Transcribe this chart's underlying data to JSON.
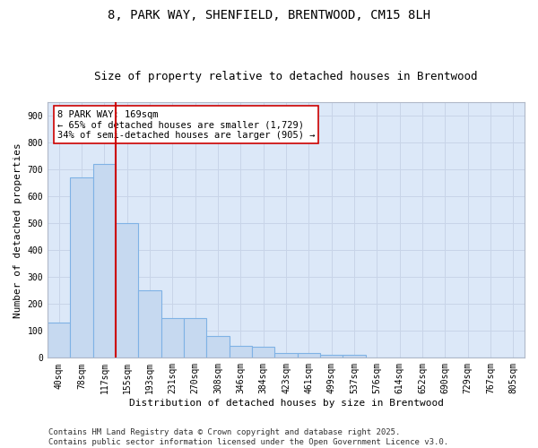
{
  "title_line1": "8, PARK WAY, SHENFIELD, BRENTWOOD, CM15 8LH",
  "title_line2": "Size of property relative to detached houses in Brentwood",
  "xlabel": "Distribution of detached houses by size in Brentwood",
  "ylabel": "Number of detached properties",
  "categories": [
    "40sqm",
    "78sqm",
    "117sqm",
    "155sqm",
    "193sqm",
    "231sqm",
    "270sqm",
    "308sqm",
    "346sqm",
    "384sqm",
    "423sqm",
    "461sqm",
    "499sqm",
    "537sqm",
    "576sqm",
    "614sqm",
    "652sqm",
    "690sqm",
    "729sqm",
    "767sqm",
    "805sqm"
  ],
  "values": [
    130,
    670,
    720,
    500,
    250,
    148,
    148,
    82,
    45,
    42,
    18,
    18,
    10,
    10,
    2,
    2,
    2,
    2,
    2,
    2,
    2
  ],
  "bar_color": "#c6d9f0",
  "bar_edge_color": "#7fb2e5",
  "vline_x": 2.5,
  "vline_color": "#cc0000",
  "annotation_text": "8 PARK WAY: 169sqm\n← 65% of detached houses are smaller (1,729)\n34% of semi-detached houses are larger (905) →",
  "annotation_box_color": "#ffffff",
  "annotation_box_edge": "#cc0000",
  "ylim": [
    0,
    950
  ],
  "yticks": [
    0,
    100,
    200,
    300,
    400,
    500,
    600,
    700,
    800,
    900
  ],
  "grid_color": "#c8d4e8",
  "background_color": "#dce8f8",
  "footer_text": "Contains HM Land Registry data © Crown copyright and database right 2025.\nContains public sector information licensed under the Open Government Licence v3.0.",
  "title_fontsize": 10,
  "subtitle_fontsize": 9,
  "axis_label_fontsize": 8,
  "tick_fontsize": 7,
  "footer_fontsize": 6.5,
  "annotation_fontsize": 7.5
}
